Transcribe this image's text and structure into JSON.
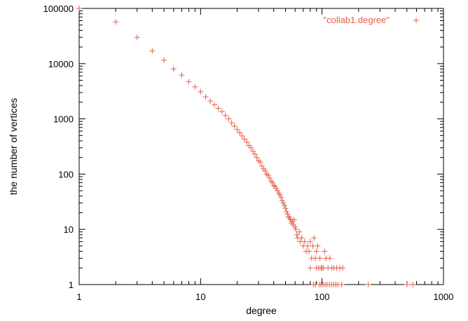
{
  "chart_data": {
    "type": "scatter",
    "xlabel": "degree",
    "ylabel": "the number of vertices",
    "xscale": "log",
    "yscale": "log",
    "xlim": [
      1,
      1000
    ],
    "ylim": [
      1,
      100000
    ],
    "grid": false,
    "legend_placement": "top-right",
    "marker": "+",
    "color": "#e8604a",
    "x_ticks": [
      "1",
      "10",
      "100",
      "1000"
    ],
    "y_ticks": [
      "1",
      "10",
      "100",
      "1000",
      "10000",
      "100000"
    ],
    "series": [
      {
        "name": "\"collab1.degree\"",
        "points": [
          [
            1,
            100000
          ],
          [
            2,
            57000
          ],
          [
            3,
            30000
          ],
          [
            4,
            17000
          ],
          [
            5,
            11500
          ],
          [
            6,
            8000
          ],
          [
            7,
            6200
          ],
          [
            8,
            4700
          ],
          [
            9,
            3800
          ],
          [
            10,
            3100
          ],
          [
            11,
            2500
          ],
          [
            12,
            2100
          ],
          [
            13,
            1800
          ],
          [
            14,
            1550
          ],
          [
            15,
            1350
          ],
          [
            16,
            1150
          ],
          [
            17,
            1000
          ],
          [
            18,
            850
          ],
          [
            19,
            740
          ],
          [
            20,
            640
          ],
          [
            21,
            560
          ],
          [
            22,
            490
          ],
          [
            23,
            430
          ],
          [
            24,
            380
          ],
          [
            25,
            330
          ],
          [
            26,
            300
          ],
          [
            27,
            260
          ],
          [
            28,
            230
          ],
          [
            29,
            200
          ],
          [
            30,
            175
          ],
          [
            31,
            165
          ],
          [
            32,
            140
          ],
          [
            33,
            125
          ],
          [
            34,
            115
          ],
          [
            35,
            100
          ],
          [
            36,
            95
          ],
          [
            37,
            85
          ],
          [
            38,
            75
          ],
          [
            39,
            70
          ],
          [
            40,
            62
          ],
          [
            41,
            60
          ],
          [
            42,
            55
          ],
          [
            43,
            50
          ],
          [
            44,
            45
          ],
          [
            45,
            42
          ],
          [
            46,
            38
          ],
          [
            47,
            33
          ],
          [
            48,
            30
          ],
          [
            49,
            27
          ],
          [
            50,
            24
          ],
          [
            51,
            21
          ],
          [
            52,
            19
          ],
          [
            53,
            17
          ],
          [
            54,
            16
          ],
          [
            55,
            15
          ],
          [
            56,
            13
          ],
          [
            57,
            14
          ],
          [
            58,
            12
          ],
          [
            59,
            15
          ],
          [
            60,
            11
          ],
          [
            61,
            10
          ],
          [
            62,
            8
          ],
          [
            63,
            7
          ],
          [
            65,
            9
          ],
          [
            66,
            6
          ],
          [
            68,
            7
          ],
          [
            70,
            5
          ],
          [
            72,
            6
          ],
          [
            74,
            4
          ],
          [
            76,
            5
          ],
          [
            78,
            4
          ],
          [
            80,
            6
          ],
          [
            82,
            3
          ],
          [
            84,
            5
          ],
          [
            86,
            7
          ],
          [
            88,
            3
          ],
          [
            90,
            4
          ],
          [
            92,
            5
          ],
          [
            94,
            2
          ],
          [
            96,
            3
          ],
          [
            98,
            2
          ],
          [
            100,
            2
          ],
          [
            103,
            2
          ],
          [
            105,
            4
          ],
          [
            108,
            3
          ],
          [
            112,
            2
          ],
          [
            116,
            3
          ],
          [
            120,
            2
          ],
          [
            125,
            2
          ],
          [
            132,
            2
          ],
          [
            140,
            2
          ],
          [
            148,
            2
          ],
          [
            80,
            2
          ],
          [
            85,
            1
          ],
          [
            88,
            1
          ],
          [
            90,
            2
          ],
          [
            95,
            1
          ],
          [
            98,
            1
          ],
          [
            102,
            1
          ],
          [
            106,
            1
          ],
          [
            110,
            1
          ],
          [
            115,
            1
          ],
          [
            120,
            1
          ],
          [
            125,
            1
          ],
          [
            130,
            1
          ],
          [
            135,
            1
          ],
          [
            145,
            1
          ],
          [
            240,
            1
          ],
          [
            500,
            1
          ],
          [
            560,
            1
          ]
        ]
      }
    ]
  }
}
